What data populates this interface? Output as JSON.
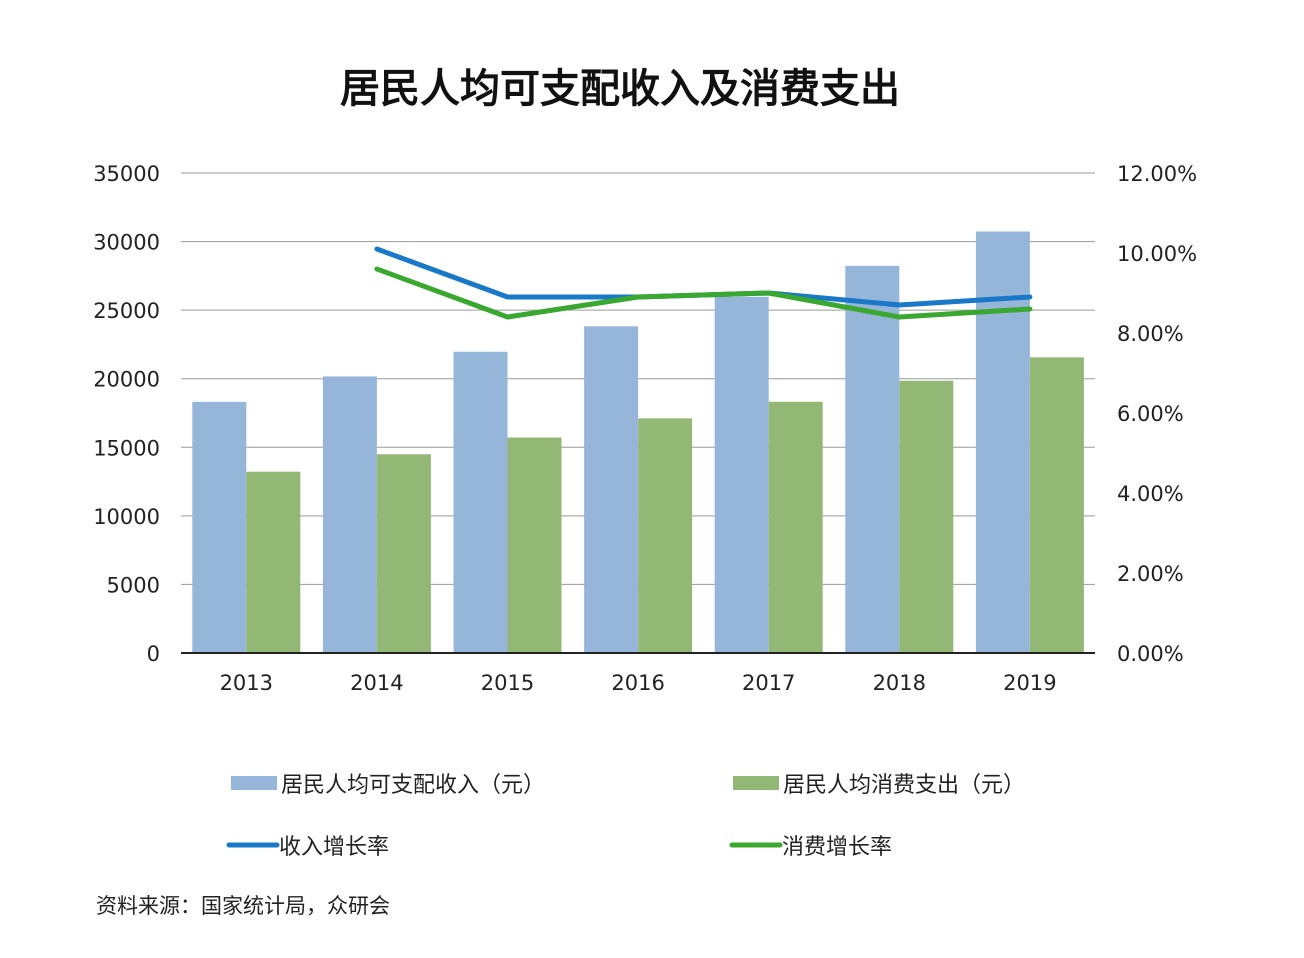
{
  "chart_data": {
    "type": "bar",
    "title": "居民人均可支配收入及消费支出",
    "categories": [
      "2013",
      "2014",
      "2015",
      "2016",
      "2017",
      "2018",
      "2019"
    ],
    "y_left": {
      "range": [
        0,
        35000
      ],
      "ticks": [
        "0",
        "5000",
        "10000",
        "15000",
        "20000",
        "25000",
        "30000",
        "35000"
      ]
    },
    "y_right": {
      "range": [
        0,
        12
      ],
      "ticks": [
        "0.00%",
        "2.00%",
        "4.00%",
        "6.00%",
        "8.00%",
        "10.00%",
        "12.00%"
      ]
    },
    "grid": true,
    "legend_position": "bottom",
    "series": [
      {
        "name": "居民人均可支配收入（元）",
        "kind": "bar",
        "axis": "left",
        "color": "#95b6d9",
        "values": [
          18311,
          20167,
          21966,
          23821,
          25974,
          28228,
          30733
        ]
      },
      {
        "name": "居民人均消费支出（元）",
        "kind": "bar",
        "axis": "left",
        "color": "#93b876",
        "values": [
          13220,
          14491,
          15712,
          17111,
          18322,
          19853,
          21559
        ]
      },
      {
        "name": "收入增长率",
        "kind": "line",
        "axis": "right",
        "color": "#1a78c8",
        "values": [
          null,
          10.1,
          8.9,
          8.9,
          9.0,
          8.7,
          8.9
        ]
      },
      {
        "name": "消费增长率",
        "kind": "line",
        "axis": "right",
        "color": "#3aa830",
        "values": [
          null,
          9.6,
          8.4,
          8.9,
          9.0,
          8.4,
          8.6
        ]
      }
    ]
  },
  "footer": {
    "source": "资料来源：国家统计局，众研会"
  }
}
